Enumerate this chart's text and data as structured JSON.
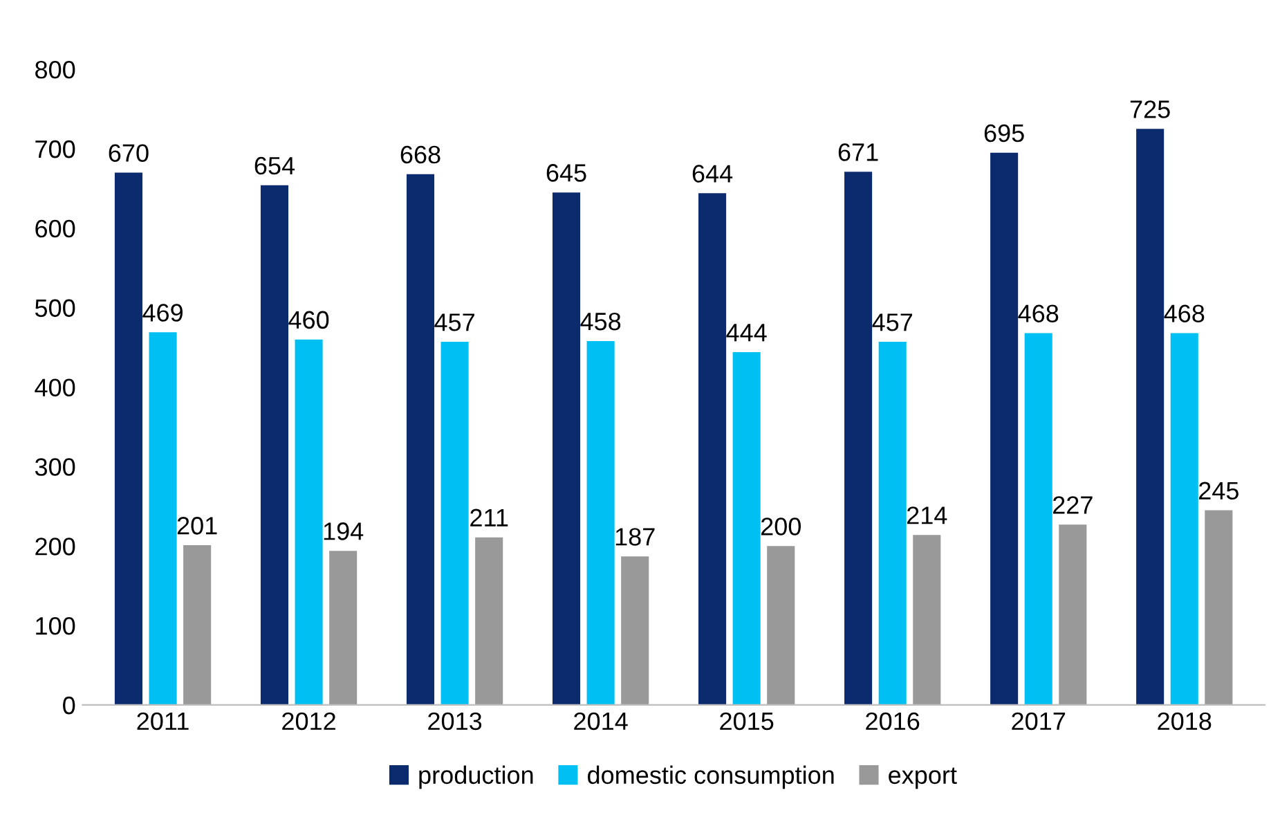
{
  "chart_data": {
    "type": "bar",
    "categories": [
      "2011",
      "2012",
      "2013",
      "2014",
      "2015",
      "2016",
      "2017",
      "2018"
    ],
    "series": [
      {
        "name": "production",
        "color": "#0c2a6e",
        "values": [
          670,
          654,
          668,
          645,
          644,
          671,
          695,
          725
        ]
      },
      {
        "name": "domestic consumption",
        "color": "#00c0f3",
        "values": [
          469,
          460,
          457,
          458,
          444,
          457,
          468,
          468
        ]
      },
      {
        "name": "export",
        "color": "#999999",
        "values": [
          201,
          194,
          211,
          187,
          200,
          214,
          227,
          245
        ]
      }
    ],
    "ylim": [
      0,
      800
    ],
    "yticks": [
      0,
      100,
      200,
      300,
      400,
      500,
      600,
      700,
      800
    ],
    "grid": false,
    "legend": "bottom",
    "data_labels": true
  }
}
